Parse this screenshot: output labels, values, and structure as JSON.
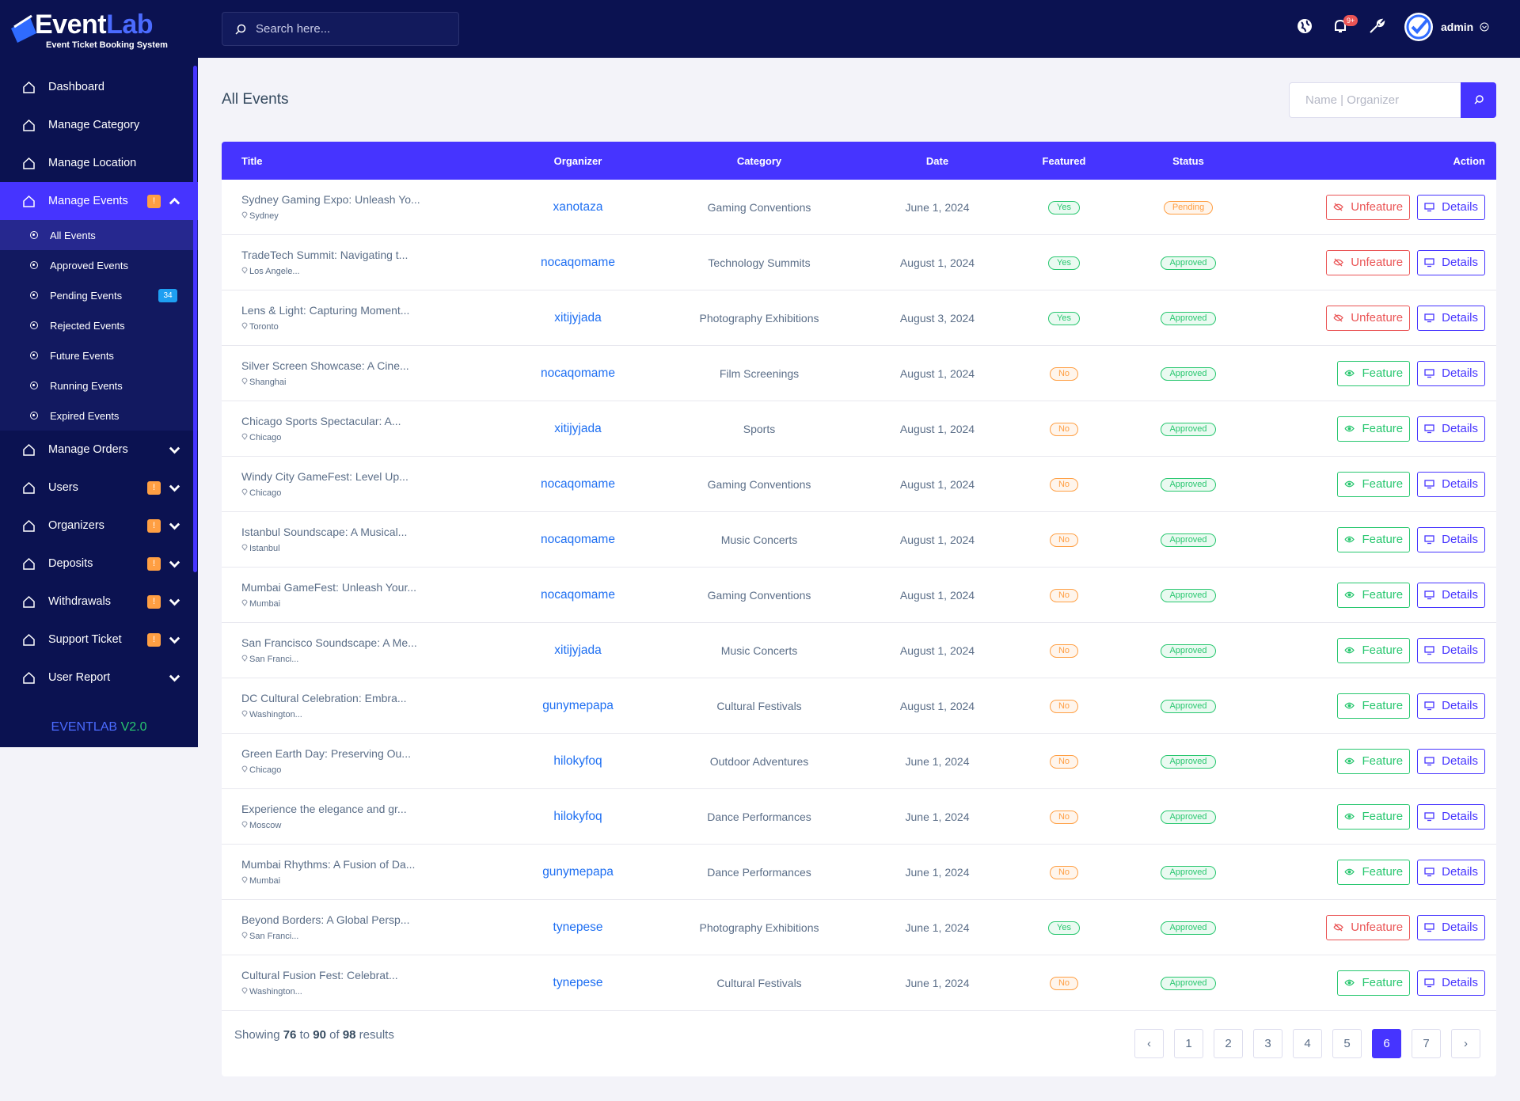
{
  "header": {
    "logo_part1": "Event",
    "logo_part2": "Lab",
    "subtitle": "Event Ticket Booking System",
    "search_placeholder": "Search here...",
    "notification_count": "9+",
    "user": "admin"
  },
  "sidebar": {
    "items": [
      {
        "label": "Dashboard"
      },
      {
        "label": "Manage Category"
      },
      {
        "label": "Manage Location"
      },
      {
        "label": "Manage Events",
        "badge": "!",
        "open": true,
        "children": [
          {
            "label": "All Events",
            "active": true
          },
          {
            "label": "Approved Events"
          },
          {
            "label": "Pending Events",
            "badge": "34"
          },
          {
            "label": "Rejected Events"
          },
          {
            "label": "Future Events"
          },
          {
            "label": "Running Events"
          },
          {
            "label": "Expired Events"
          }
        ]
      },
      {
        "label": "Manage Orders",
        "caret": true
      },
      {
        "label": "Users",
        "badge": "!",
        "caret": true
      },
      {
        "label": "Organizers",
        "badge": "!",
        "caret": true
      },
      {
        "label": "Deposits",
        "badge": "!",
        "caret": true
      },
      {
        "label": "Withdrawals",
        "badge": "!",
        "caret": true
      },
      {
        "label": "Support Ticket",
        "badge": "!",
        "caret": true
      },
      {
        "label": "User Report",
        "caret": true
      }
    ],
    "version_name": "EVENTLAB",
    "version": "V2.0"
  },
  "page": {
    "title": "All Events",
    "search_placeholder": "Name | Organizer"
  },
  "table": {
    "headers": [
      "Title",
      "Organizer",
      "Category",
      "Date",
      "Featured",
      "Status",
      "Action"
    ],
    "rows": [
      {
        "title": "Sydney Gaming Expo: Unleash Yo...",
        "location": "Sydney",
        "organizer": "xanotaza",
        "category": "Gaming Conventions",
        "date": "June 1, 2024",
        "featured": "Yes",
        "status": "Pending",
        "action": "Unfeature",
        "details": "Details"
      },
      {
        "title": "TradeTech Summit: Navigating t...",
        "location": "Los Angele...",
        "organizer": "nocaqomame",
        "category": "Technology Summits",
        "date": "August 1, 2024",
        "featured": "Yes",
        "status": "Approved",
        "action": "Unfeature",
        "details": "Details"
      },
      {
        "title": "Lens & Light: Capturing Moment...",
        "location": "Toronto",
        "organizer": "xitijyjada",
        "category": "Photography Exhibitions",
        "date": "August 3, 2024",
        "featured": "Yes",
        "status": "Approved",
        "action": "Unfeature",
        "details": "Details"
      },
      {
        "title": "Silver Screen Showcase: A Cine...",
        "location": "Shanghai",
        "organizer": "nocaqomame",
        "category": "Film Screenings",
        "date": "August 1, 2024",
        "featured": "No",
        "status": "Approved",
        "action": "Feature",
        "details": "Details"
      },
      {
        "title": "Chicago Sports Spectacular: A...",
        "location": "Chicago",
        "organizer": "xitijyjada",
        "category": "Sports",
        "date": "August 1, 2024",
        "featured": "No",
        "status": "Approved",
        "action": "Feature",
        "details": "Details"
      },
      {
        "title": "Windy City GameFest: Level Up...",
        "location": "Chicago",
        "organizer": "nocaqomame",
        "category": "Gaming Conventions",
        "date": "August 1, 2024",
        "featured": "No",
        "status": "Approved",
        "action": "Feature",
        "details": "Details"
      },
      {
        "title": "Istanbul Soundscape: A Musical...",
        "location": "Istanbul",
        "organizer": "nocaqomame",
        "category": "Music Concerts",
        "date": "August 1, 2024",
        "featured": "No",
        "status": "Approved",
        "action": "Feature",
        "details": "Details"
      },
      {
        "title": "Mumbai GameFest: Unleash Your...",
        "location": "Mumbai",
        "organizer": "nocaqomame",
        "category": "Gaming Conventions",
        "date": "August 1, 2024",
        "featured": "No",
        "status": "Approved",
        "action": "Feature",
        "details": "Details"
      },
      {
        "title": "San Francisco Soundscape: A Me...",
        "location": "San Franci...",
        "organizer": "xitijyjada",
        "category": "Music Concerts",
        "date": "August 1, 2024",
        "featured": "No",
        "status": "Approved",
        "action": "Feature",
        "details": "Details"
      },
      {
        "title": "DC Cultural Celebration: Embra...",
        "location": "Washington...",
        "organizer": "gunymepapa",
        "category": "Cultural Festivals",
        "date": "August 1, 2024",
        "featured": "No",
        "status": "Approved",
        "action": "Feature",
        "details": "Details"
      },
      {
        "title": "Green Earth Day: Preserving Ou...",
        "location": "Chicago",
        "organizer": "hilokyfoq",
        "category": "Outdoor Adventures",
        "date": "June 1, 2024",
        "featured": "No",
        "status": "Approved",
        "action": "Feature",
        "details": "Details"
      },
      {
        "title": "Experience the elegance and gr...",
        "location": "Moscow",
        "organizer": "hilokyfoq",
        "category": "Dance Performances",
        "date": "June 1, 2024",
        "featured": "No",
        "status": "Approved",
        "action": "Feature",
        "details": "Details"
      },
      {
        "title": "Mumbai Rhythms: A Fusion of Da...",
        "location": "Mumbai",
        "organizer": "gunymepapa",
        "category": "Dance Performances",
        "date": "June 1, 2024",
        "featured": "No",
        "status": "Approved",
        "action": "Feature",
        "details": "Details"
      },
      {
        "title": "Beyond Borders: A Global Persp...",
        "location": "San Franci...",
        "organizer": "tynepese",
        "category": "Photography Exhibitions",
        "date": "June 1, 2024",
        "featured": "Yes",
        "status": "Approved",
        "action": "Unfeature",
        "details": "Details"
      },
      {
        "title": "Cultural Fusion Fest: Celebrat...",
        "location": "Washington...",
        "organizer": "tynepese",
        "category": "Cultural Festivals",
        "date": "June 1, 2024",
        "featured": "No",
        "status": "Approved",
        "action": "Feature",
        "details": "Details"
      }
    ]
  },
  "footer": {
    "prefix": "Showing",
    "from": 76,
    "to_word": "to",
    "to": 90,
    "of_word": "of",
    "total": 98,
    "suffix": "results"
  },
  "pagination": {
    "pages": [
      "‹",
      "1",
      "2",
      "3",
      "4",
      "5",
      "6",
      "7",
      "›"
    ],
    "active_index": 6
  }
}
